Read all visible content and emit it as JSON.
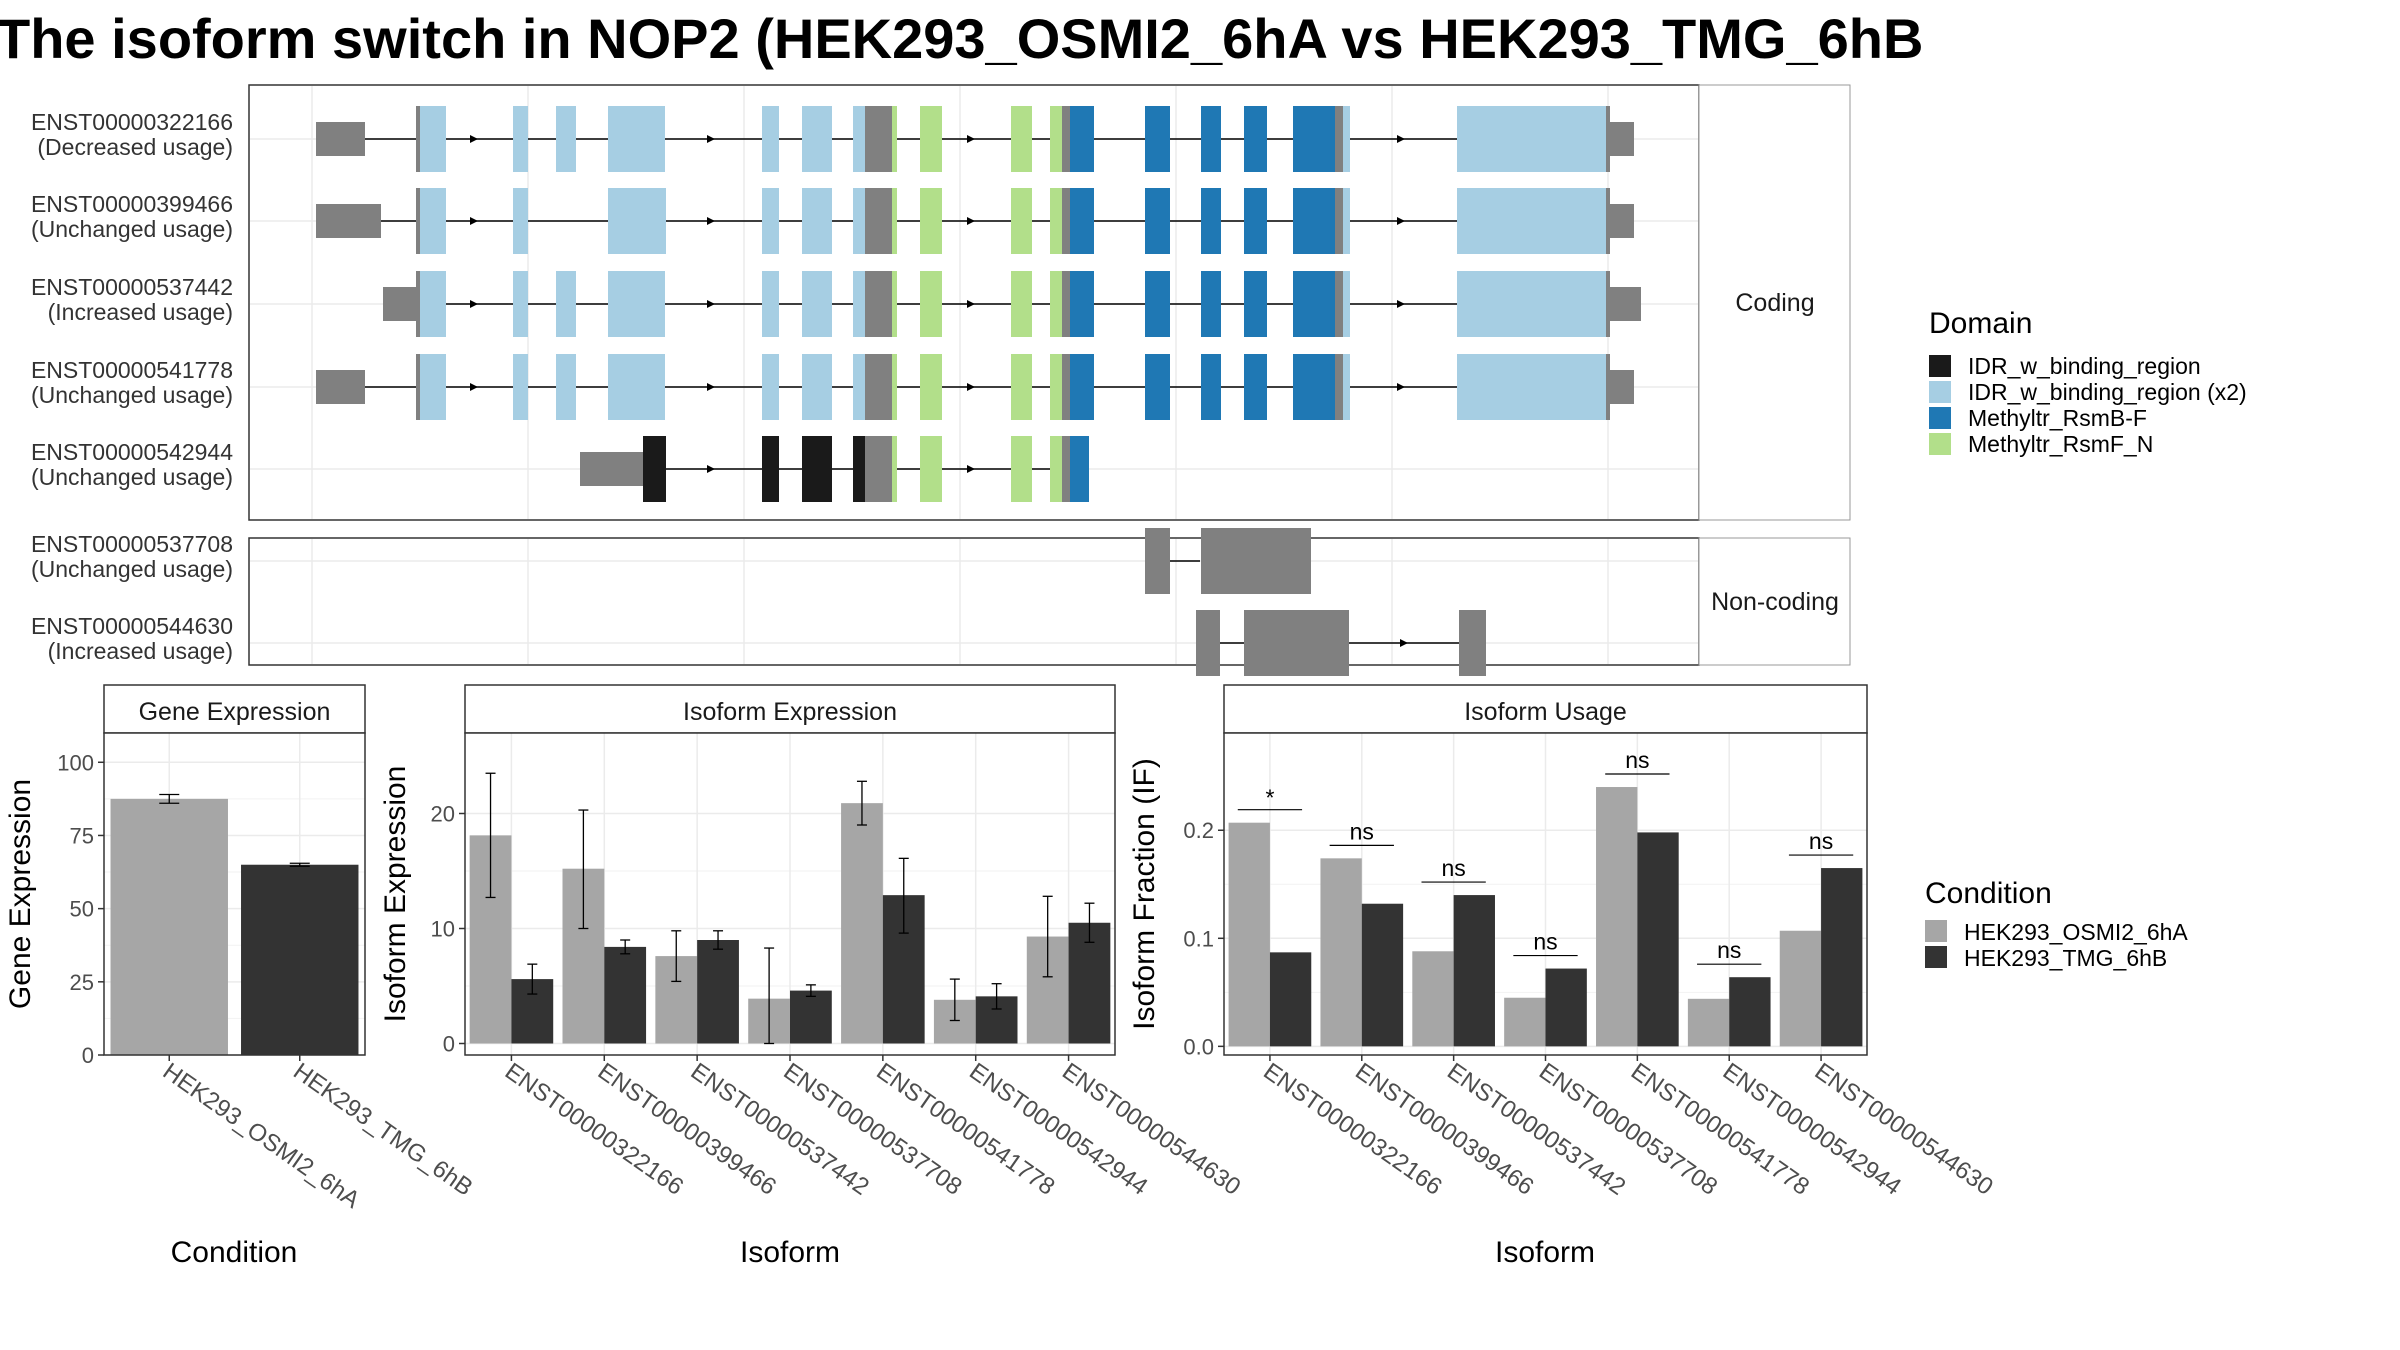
{
  "title": "The isoform switch in NOP2 (HEK293_OSMI2_6hA vs HEK293_TMG_6hB",
  "colors": {
    "utr": "#808080",
    "IDR_w_binding_region": "#1a1a1a",
    "IDR_w_binding_region (x2)": "#a6cee3",
    "Methyltr_RsmB-F": "#1f78b4",
    "Methyltr_RsmF_N": "#b2df8a",
    "cond1": "#a6a6a6",
    "cond2": "#333333"
  },
  "structure": {
    "coding_strip": "Coding",
    "noncoding_strip": "Non-coding",
    "domain_legend_title": "Domain",
    "domain_legend": [
      "IDR_w_binding_region",
      "IDR_w_binding_region (x2)",
      "Methyltr_RsmB-F",
      "Methyltr_RsmF_N"
    ],
    "isoforms": [
      {
        "id": "ENST00000322166",
        "usage": "(Decreased usage)",
        "group": "coding"
      },
      {
        "id": "ENST00000399466",
        "usage": "(Unchanged usage)",
        "group": "coding"
      },
      {
        "id": "ENST00000537442",
        "usage": "(Increased usage)",
        "group": "coding"
      },
      {
        "id": "ENST00000541778",
        "usage": "(Unchanged usage)",
        "group": "coding"
      },
      {
        "id": "ENST00000542944",
        "usage": "(Unchanged usage)",
        "group": "coding"
      },
      {
        "id": "ENST00000537708",
        "usage": "(Unchanged usage)",
        "group": "noncoding"
      },
      {
        "id": "ENST00000544630",
        "usage": "(Increased usage)",
        "group": "noncoding"
      }
    ]
  },
  "condition_legend": {
    "title": "Condition",
    "items": [
      "HEK293_OSMI2_6hA",
      "HEK293_TMG_6hB"
    ]
  },
  "chart_data": [
    {
      "type": "bar",
      "title": "Gene Expression",
      "xlabel": "Condition",
      "ylabel": "Gene Expression",
      "categories": [
        "HEK293_OSMI2_6hA",
        "HEK293_TMG_6hB"
      ],
      "values": [
        87.5,
        65
      ],
      "errors": [
        [
          86,
          89
        ],
        [
          64.5,
          65.5
        ]
      ],
      "ylim": [
        0,
        110
      ],
      "yticks": [
        0,
        25,
        50,
        75,
        100
      ]
    },
    {
      "type": "bar",
      "title": "Isoform Expression",
      "xlabel": "Isoform",
      "ylabel": "Isoform Expression",
      "categories": [
        "ENST00000322166",
        "ENST00000399466",
        "ENST00000537442",
        "ENST00000537708",
        "ENST00000541778",
        "ENST00000542944",
        "ENST00000544630"
      ],
      "series": [
        {
          "name": "HEK293_OSMI2_6hA",
          "values": [
            18.1,
            15.2,
            7.6,
            3.9,
            20.9,
            3.8,
            9.3
          ],
          "errors": [
            [
              12.7,
              23.5
            ],
            [
              10.0,
              20.3
            ],
            [
              5.4,
              9.8
            ],
            [
              0.0,
              8.3
            ],
            [
              19.0,
              22.8
            ],
            [
              2.0,
              5.6
            ],
            [
              5.8,
              12.8
            ]
          ]
        },
        {
          "name": "HEK293_TMG_6hB",
          "values": [
            5.6,
            8.4,
            9.0,
            4.6,
            12.9,
            4.1,
            10.5
          ],
          "errors": [
            [
              4.3,
              6.9
            ],
            [
              7.8,
              9.0
            ],
            [
              8.2,
              9.8
            ],
            [
              4.1,
              5.1
            ],
            [
              9.6,
              16.1
            ],
            [
              3.0,
              5.2
            ],
            [
              8.8,
              12.2
            ]
          ]
        }
      ],
      "ylim": [
        -1,
        27
      ],
      "yticks": [
        0,
        10,
        20
      ]
    },
    {
      "type": "bar",
      "title": "Isoform Usage",
      "xlabel": "Isoform",
      "ylabel": "Isoform Fraction (IF)",
      "categories": [
        "ENST00000322166",
        "ENST00000399466",
        "ENST00000537442",
        "ENST00000537708",
        "ENST00000541778",
        "ENST00000542944",
        "ENST00000544630"
      ],
      "series": [
        {
          "name": "HEK293_OSMI2_6hA",
          "values": [
            0.207,
            0.174,
            0.088,
            0.045,
            0.24,
            0.044,
            0.107
          ]
        },
        {
          "name": "HEK293_TMG_6hB",
          "values": [
            0.087,
            0.132,
            0.14,
            0.072,
            0.198,
            0.064,
            0.165
          ]
        }
      ],
      "significance": [
        "*",
        "ns",
        "ns",
        "ns",
        "ns",
        "ns",
        "ns"
      ],
      "ylim": [
        -0.008,
        0.29
      ],
      "yticks": [
        0.0,
        0.1,
        0.2
      ],
      "yticklabels": [
        "0.0",
        "0.1",
        "0.2"
      ]
    }
  ]
}
